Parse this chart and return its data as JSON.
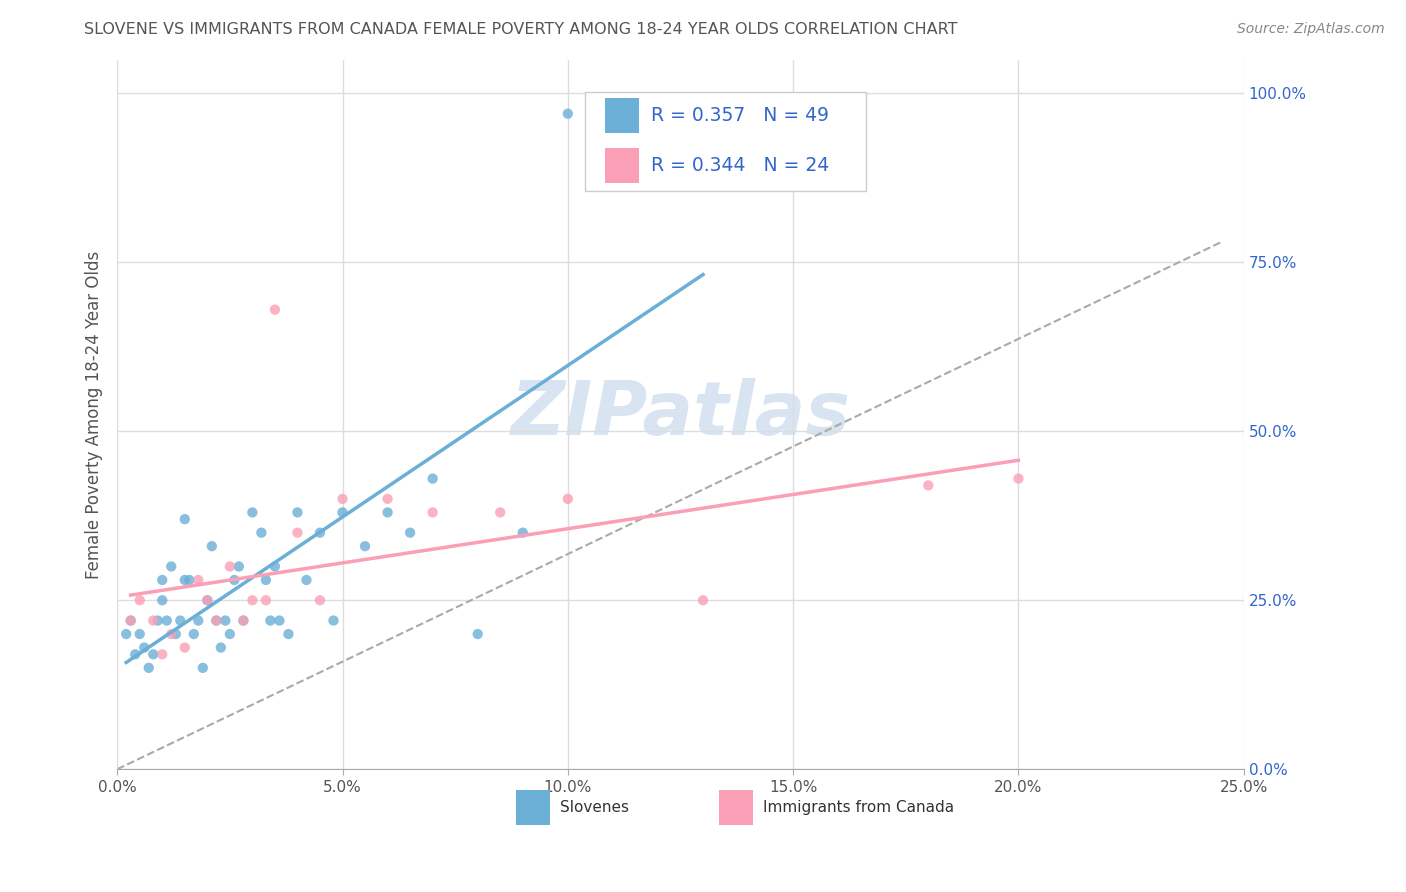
{
  "title": "SLOVENE VS IMMIGRANTS FROM CANADA FEMALE POVERTY AMONG 18-24 YEAR OLDS CORRELATION CHART",
  "source": "Source: ZipAtlas.com",
  "ylabel": "Female Poverty Among 18-24 Year Olds",
  "xlim": [
    0.0,
    0.25
  ],
  "ylim": [
    0.0,
    1.05
  ],
  "xticks": [
    0.0,
    0.05,
    0.1,
    0.15,
    0.2,
    0.25
  ],
  "xticklabels": [
    "0.0%",
    "5.0%",
    "10.0%",
    "15.0%",
    "20.0%",
    "25.0%"
  ],
  "yticks": [
    0.0,
    0.25,
    0.5,
    0.75,
    1.0
  ],
  "yticklabels": [
    "0.0%",
    "25.0%",
    "50.0%",
    "75.0%",
    "100.0%"
  ],
  "slovene_color": "#6baed6",
  "canada_color": "#fa9fb5",
  "slovene_R": 0.357,
  "slovene_N": 49,
  "canada_R": 0.344,
  "canada_N": 24,
  "legend_label_slovene": "Slovenes",
  "legend_label_canada": "Immigrants from Canada",
  "slovene_x": [
    0.002,
    0.003,
    0.004,
    0.005,
    0.006,
    0.007,
    0.008,
    0.009,
    0.01,
    0.01,
    0.011,
    0.012,
    0.013,
    0.014,
    0.015,
    0.015,
    0.016,
    0.017,
    0.018,
    0.019,
    0.02,
    0.021,
    0.022,
    0.023,
    0.024,
    0.025,
    0.026,
    0.027,
    0.028,
    0.03,
    0.032,
    0.033,
    0.034,
    0.035,
    0.036,
    0.038,
    0.04,
    0.042,
    0.045,
    0.048,
    0.05,
    0.055,
    0.06,
    0.065,
    0.07,
    0.08,
    0.09,
    0.1,
    0.13
  ],
  "slovene_y": [
    0.2,
    0.22,
    0.17,
    0.2,
    0.18,
    0.15,
    0.17,
    0.22,
    0.25,
    0.28,
    0.22,
    0.3,
    0.2,
    0.22,
    0.37,
    0.28,
    0.28,
    0.2,
    0.22,
    0.15,
    0.25,
    0.33,
    0.22,
    0.18,
    0.22,
    0.2,
    0.28,
    0.3,
    0.22,
    0.38,
    0.35,
    0.28,
    0.22,
    0.3,
    0.22,
    0.2,
    0.38,
    0.28,
    0.35,
    0.22,
    0.38,
    0.33,
    0.38,
    0.35,
    0.43,
    0.2,
    0.35,
    0.97,
    0.97
  ],
  "canada_x": [
    0.003,
    0.005,
    0.008,
    0.01,
    0.012,
    0.015,
    0.018,
    0.02,
    0.022,
    0.025,
    0.028,
    0.03,
    0.033,
    0.035,
    0.04,
    0.045,
    0.05,
    0.06,
    0.07,
    0.085,
    0.1,
    0.13,
    0.18,
    0.2
  ],
  "canada_y": [
    0.22,
    0.25,
    0.22,
    0.17,
    0.2,
    0.18,
    0.28,
    0.25,
    0.22,
    0.3,
    0.22,
    0.25,
    0.25,
    0.68,
    0.35,
    0.25,
    0.4,
    0.4,
    0.38,
    0.38,
    0.4,
    0.25,
    0.42,
    0.43
  ],
  "watermark": "ZIPatlas",
  "background_color": "#ffffff",
  "grid_color": "#dddddd",
  "legend_R_color": "#3366cc",
  "title_color": "#555555",
  "ytick_color": "#3366cc"
}
